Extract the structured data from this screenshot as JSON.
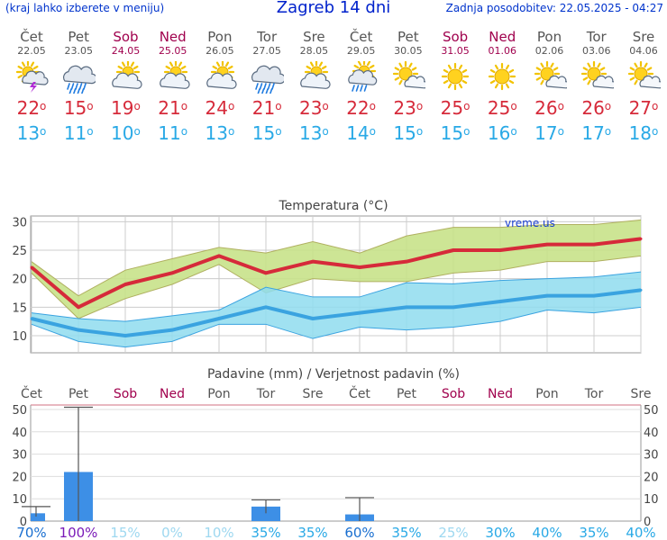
{
  "header": {
    "subtitle": "(kraj lahko izberete v meniju)",
    "title": "Zagreb 14 dni",
    "updated": "Zadnja posodobitev: 22.05.2025 - 04:27"
  },
  "colors": {
    "max_line": "#d62a3a",
    "max_band": "#c8e28a",
    "min_line": "#3aa3e0",
    "min_band": "#8fdcef",
    "bar": "#3d8fe6",
    "weekend": "#a0004d"
  },
  "days": [
    {
      "name": "Čet",
      "date": "22.05",
      "icon": "sun-cloud-storm-icon",
      "max": "22",
      "min": "13",
      "weekend": false,
      "prob": "70%"
    },
    {
      "name": "Pet",
      "date": "23.05",
      "icon": "cloud-heavy-rain-icon",
      "max": "15",
      "min": "11",
      "weekend": false,
      "prob": "100%"
    },
    {
      "name": "Sob",
      "date": "24.05",
      "icon": "sun-behind-cloud-icon",
      "max": "19",
      "min": "10",
      "weekend": true,
      "prob": "15%"
    },
    {
      "name": "Ned",
      "date": "25.05",
      "icon": "sun-behind-cloud-icon",
      "max": "21",
      "min": "11",
      "weekend": true,
      "prob": "0%"
    },
    {
      "name": "Pon",
      "date": "26.05",
      "icon": "sun-behind-cloud-icon",
      "max": "24",
      "min": "13",
      "weekend": false,
      "prob": "10%"
    },
    {
      "name": "Tor",
      "date": "27.05",
      "icon": "cloud-heavy-rain-icon",
      "max": "21",
      "min": "15",
      "weekend": false,
      "prob": "35%"
    },
    {
      "name": "Sre",
      "date": "28.05",
      "icon": "sun-behind-cloud-icon",
      "max": "23",
      "min": "13",
      "weekend": false,
      "prob": "35%"
    },
    {
      "name": "Čet",
      "date": "29.05",
      "icon": "sun-cloud-rain-icon",
      "max": "22",
      "min": "14",
      "weekend": false,
      "prob": "60%"
    },
    {
      "name": "Pet",
      "date": "30.05",
      "icon": "sun-small-cloud-icon",
      "max": "23",
      "min": "15",
      "weekend": false,
      "prob": "35%"
    },
    {
      "name": "Sob",
      "date": "31.05",
      "icon": "sun-icon",
      "max": "25",
      "min": "15",
      "weekend": true,
      "prob": "25%"
    },
    {
      "name": "Ned",
      "date": "01.06",
      "icon": "sun-icon",
      "max": "25",
      "min": "16",
      "weekend": true,
      "prob": "30%"
    },
    {
      "name": "Pon",
      "date": "02.06",
      "icon": "sun-small-cloud-icon",
      "max": "26",
      "min": "17",
      "weekend": false,
      "prob": "40%"
    },
    {
      "name": "Tor",
      "date": "03.06",
      "icon": "sun-small-cloud-icon",
      "max": "26",
      "min": "17",
      "weekend": false,
      "prob": "35%"
    },
    {
      "name": "Sre",
      "date": "04.06",
      "icon": "sun-small-cloud-icon",
      "max": "27",
      "min": "18",
      "weekend": false,
      "prob": "40%"
    }
  ],
  "chart_data": [
    {
      "type": "line",
      "title": "Temperatura (°C)",
      "watermark": "vreme.us",
      "ylim": [
        7,
        31
      ],
      "yticks": [
        10,
        15,
        20,
        25,
        30
      ],
      "grid": true,
      "series": [
        {
          "values": [
            22,
            15,
            19,
            21,
            24,
            21,
            23,
            22,
            23,
            25,
            25,
            26,
            26,
            27
          ],
          "band_upper": [
            23,
            17,
            21.5,
            23.5,
            25.5,
            24.5,
            26.5,
            24.5,
            27.5,
            29,
            29,
            29.5,
            29.5,
            30.3
          ],
          "band_lower": [
            21,
            13,
            16.5,
            19,
            22.5,
            17.5,
            20,
            19.5,
            19.5,
            21,
            21.5,
            23,
            23,
            24
          ]
        },
        {
          "values": [
            13,
            11,
            10,
            11,
            13,
            15,
            13,
            14,
            15,
            15,
            16,
            17,
            17,
            18
          ],
          "band_upper": [
            14,
            13,
            12.5,
            13.5,
            14.5,
            18.5,
            16.8,
            16.8,
            19.3,
            19.1,
            19.7,
            20,
            20.3,
            21.2
          ],
          "band_lower": [
            12,
            9,
            8,
            9,
            12,
            12,
            9.5,
            11.5,
            11,
            11.5,
            12.5,
            14.5,
            14,
            15
          ]
        }
      ]
    },
    {
      "type": "bar",
      "title": "Padavine (mm) / Verjetnost padavin (%)",
      "ylim": [
        0,
        52
      ],
      "yticks": [
        0,
        10,
        20,
        30,
        40,
        50
      ],
      "values": [
        3.5,
        22,
        0,
        0,
        0,
        6.5,
        0,
        3,
        0,
        0,
        0,
        0,
        0,
        0
      ],
      "range_upper": [
        6.5,
        51,
        null,
        null,
        null,
        9.5,
        null,
        10.5,
        null,
        null,
        null,
        null,
        null,
        null
      ],
      "range_lower": [
        2,
        0,
        null,
        null,
        null,
        3.5,
        null,
        0,
        null,
        null,
        null,
        null,
        null,
        null
      ]
    }
  ]
}
